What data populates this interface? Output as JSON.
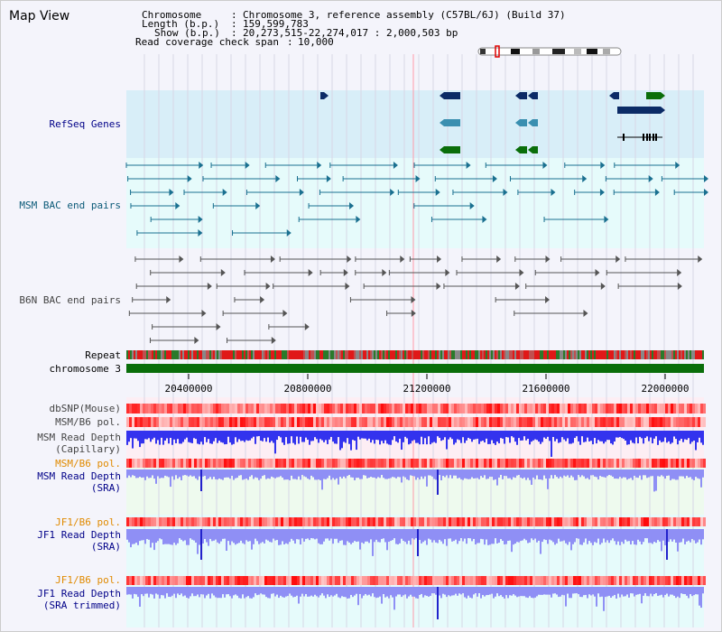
{
  "title": "Map View",
  "info": {
    "chromosome_label": "Chromosome",
    "chromosome_value": "Chromosome 3, reference assembly (C57BL/6J) (Build 37)",
    "length_label": "Length (b.p.)",
    "length_value": "159,599,783",
    "show_label": "Show (b.p.)",
    "show_value": "20,273,515-22,274,017 : 2,000,503 bp",
    "coverage_label": "Read coverage check span",
    "coverage_value": "10,000"
  },
  "tracks": {
    "refseq": "RefSeq Genes",
    "msm_bac": "MSM BAC end pairs",
    "b6n_bac": "B6N BAC end pairs",
    "repeat": "Repeat",
    "chromosome": "chromosome 3",
    "dbsnp": "dbSNP(Mouse)",
    "msm_b6_pol_1": "MSM/B6 pol.",
    "msm_read_depth_cap": "MSM Read Depth\n(Capillary)",
    "msm_b6_pol_2": "MSM/B6 pol.",
    "msm_read_depth_sra": "MSM Read Depth\n(SRA)",
    "jf1_b6_pol_1": "JF1/B6 pol.",
    "jf1_read_depth_sra": "JF1 Read Depth\n(SRA)",
    "jf1_b6_pol_2": "JF1/B6 pol.",
    "jf1_read_depth_trim": "JF1 Read Depth\n(SRA trimmed)"
  },
  "axis": {
    "ticks": [
      "20400000",
      "20800000",
      "21200000",
      "21600000",
      "22000000"
    ]
  },
  "colors": {
    "refseq_bg": "#d8eef8",
    "bac_bg": "#e6fbfb",
    "gene_navy": "#0b2b66",
    "gene_teal": "#3a8fb0",
    "gene_green": "#0a6e0a",
    "depth_blue": "#3333ee",
    "depth_lightblue": "#8f8ff5",
    "pol_red": "#e83030",
    "chrom_green": "#0a6e0a"
  }
}
